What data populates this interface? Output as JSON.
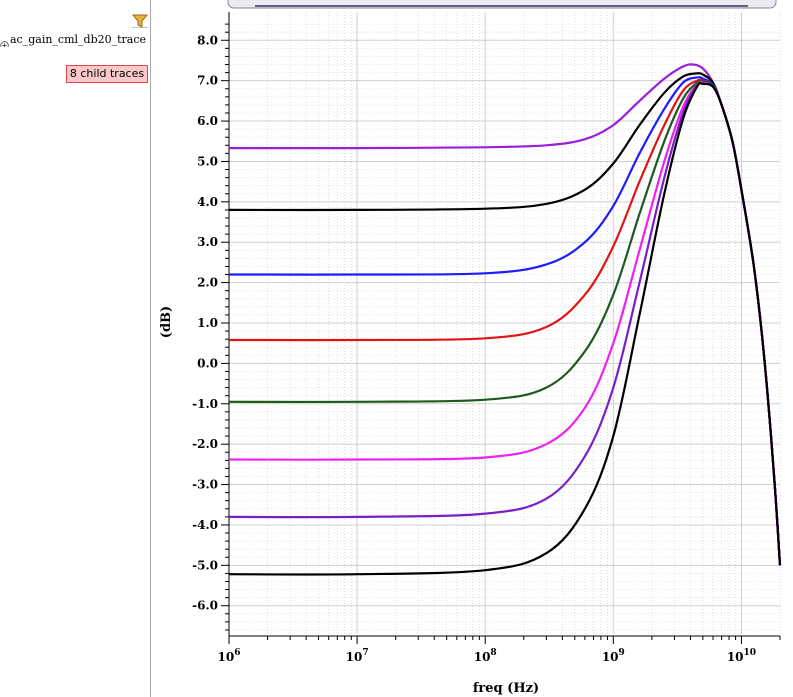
{
  "panel": {
    "trace_name": "ac_gain_cml_db20_trace",
    "child_badge": "8 child traces",
    "filter_icon": "filter-funnel-icon",
    "expand_icon": "plus-circle-icon"
  },
  "chart_data": {
    "type": "line",
    "xlabel": "freq (Hz)",
    "ylabel": "(dB)",
    "xscale": "log",
    "xlim": [
      1000000,
      20000000000
    ],
    "ylim": [
      -6.7,
      8.7
    ],
    "grid": true,
    "yticks": [
      {
        "value": 8,
        "label": "8.0"
      },
      {
        "value": 7,
        "label": "7.0"
      },
      {
        "value": 6,
        "label": "6.0"
      },
      {
        "value": 5,
        "label": "5.0"
      },
      {
        "value": 4,
        "label": "4.0"
      },
      {
        "value": 3,
        "label": "3.0"
      },
      {
        "value": 2,
        "label": "2.0"
      },
      {
        "value": 1,
        "label": "1.0"
      },
      {
        "value": 0,
        "label": "0.0"
      },
      {
        "value": -1,
        "label": "-1.0"
      },
      {
        "value": -2,
        "label": "-2.0"
      },
      {
        "value": -3,
        "label": "-3.0"
      },
      {
        "value": -4,
        "label": "-4.0"
      },
      {
        "value": -5,
        "label": "-5.0"
      },
      {
        "value": -6,
        "label": "-6.0"
      }
    ],
    "xticks": [
      {
        "value": 1000000,
        "base": "10",
        "exp": "6"
      },
      {
        "value": 10000000,
        "base": "10",
        "exp": "7"
      },
      {
        "value": 100000000,
        "base": "10",
        "exp": "8"
      },
      {
        "value": 1000000000,
        "base": "10",
        "exp": "9"
      },
      {
        "value": 10000000000,
        "base": "10",
        "exp": "10"
      }
    ],
    "series": [
      {
        "color": "#9a1fd8",
        "x": [
          1000000.0,
          10000000.0,
          100000000.0,
          300000000.0,
          600000000.0,
          1000000000.0,
          1600000000.0,
          2500000000.0,
          3500000000.0,
          4200000000.0,
          5000000000.0,
          6000000000.0,
          7000000000.0,
          8500000000.0,
          10000000000.0,
          12500000000.0,
          15000000000.0,
          18000000000.0,
          20000000000.0
        ],
        "y": [
          5.33,
          5.33,
          5.35,
          5.4,
          5.55,
          5.9,
          6.5,
          7.05,
          7.35,
          7.4,
          7.3,
          6.95,
          6.4,
          5.5,
          4.3,
          2.4,
          0.2,
          -2.8,
          -5.0
        ]
      },
      {
        "color": "#000000",
        "x": [
          1000000.0,
          10000000.0,
          100000000.0,
          300000000.0,
          600000000.0,
          1000000000.0,
          1600000000.0,
          2500000000.0,
          3500000000.0,
          4500000000.0,
          5000000000.0,
          6000000000.0,
          7000000000.0,
          8500000000.0,
          10000000000.0,
          12500000000.0,
          15000000000.0,
          18000000000.0,
          20000000000.0
        ],
        "y": [
          3.8,
          3.8,
          3.83,
          3.95,
          4.3,
          4.95,
          5.9,
          6.7,
          7.1,
          7.18,
          7.15,
          6.95,
          6.4,
          5.5,
          4.3,
          2.4,
          0.2,
          -2.8,
          -5.0
        ]
      },
      {
        "color": "#1c1cff",
        "x": [
          1000000.0,
          10000000.0,
          100000000.0,
          300000000.0,
          600000000.0,
          1000000000.0,
          1600000000.0,
          2500000000.0,
          3500000000.0,
          4500000000.0,
          5000000000.0,
          6000000000.0,
          7000000000.0,
          8500000000.0,
          10000000000.0,
          12500000000.0,
          15000000000.0,
          18000000000.0,
          20000000000.0
        ],
        "y": [
          2.2,
          2.2,
          2.23,
          2.45,
          3.0,
          3.9,
          5.2,
          6.3,
          6.95,
          7.08,
          7.05,
          6.9,
          6.4,
          5.5,
          4.3,
          2.4,
          0.2,
          -2.8,
          -5.0
        ]
      },
      {
        "color": "#e01414",
        "x": [
          1000000.0,
          10000000.0,
          100000000.0,
          300000000.0,
          600000000.0,
          1000000000.0,
          1600000000.0,
          2500000000.0,
          3500000000.0,
          4500000000.0,
          5000000000.0,
          6000000000.0,
          7000000000.0,
          8500000000.0,
          10000000000.0,
          12500000000.0,
          15000000000.0,
          18000000000.0,
          20000000000.0
        ],
        "y": [
          0.58,
          0.58,
          0.62,
          0.9,
          1.7,
          2.9,
          4.5,
          5.9,
          6.75,
          7.0,
          7.0,
          6.88,
          6.4,
          5.5,
          4.3,
          2.4,
          0.2,
          -2.8,
          -5.0
        ]
      },
      {
        "color": "#1e5a1e",
        "x": [
          1000000.0,
          10000000.0,
          100000000.0,
          300000000.0,
          600000000.0,
          1000000000.0,
          1600000000.0,
          2500000000.0,
          3500000000.0,
          4500000000.0,
          5000000000.0,
          6000000000.0,
          7000000000.0,
          8500000000.0,
          10000000000.0,
          12500000000.0,
          15000000000.0,
          18000000000.0,
          20000000000.0
        ],
        "y": [
          -0.95,
          -0.95,
          -0.9,
          -0.6,
          0.3,
          1.7,
          3.7,
          5.5,
          6.55,
          6.95,
          6.98,
          6.88,
          6.4,
          5.5,
          4.3,
          2.4,
          0.2,
          -2.8,
          -5.0
        ]
      },
      {
        "color": "#ee22ee",
        "x": [
          1000000.0,
          10000000.0,
          100000000.0,
          300000000.0,
          600000000.0,
          1000000000.0,
          1600000000.0,
          2500000000.0,
          3500000000.0,
          4500000000.0,
          5000000000.0,
          6000000000.0,
          7000000000.0,
          8500000000.0,
          10000000000.0,
          12500000000.0,
          15000000000.0,
          18000000000.0,
          20000000000.0
        ],
        "y": [
          -2.38,
          -2.38,
          -2.33,
          -2.0,
          -1.1,
          0.5,
          2.8,
          5.0,
          6.35,
          6.9,
          6.95,
          6.85,
          6.4,
          5.5,
          4.3,
          2.4,
          0.2,
          -2.8,
          -5.0
        ]
      },
      {
        "color": "#7a1fc8",
        "x": [
          1000000.0,
          10000000.0,
          100000000.0,
          300000000.0,
          600000000.0,
          1000000000.0,
          1600000000.0,
          2500000000.0,
          3500000000.0,
          4500000000.0,
          5000000000.0,
          6000000000.0,
          7000000000.0,
          8500000000.0,
          10000000000.0,
          12500000000.0,
          15000000000.0,
          18000000000.0,
          20000000000.0
        ],
        "y": [
          -3.8,
          -3.8,
          -3.72,
          -3.35,
          -2.3,
          -0.6,
          2.0,
          4.6,
          6.2,
          6.88,
          6.92,
          6.85,
          6.4,
          5.5,
          4.3,
          2.4,
          0.2,
          -2.8,
          -5.0
        ]
      },
      {
        "color": "#000000",
        "x": [
          1000000.0,
          10000000.0,
          100000000.0,
          300000000.0,
          600000000.0,
          1000000000.0,
          1600000000.0,
          2500000000.0,
          3500000000.0,
          4500000000.0,
          5000000000.0,
          6000000000.0,
          7000000000.0,
          8500000000.0,
          10000000000.0,
          12500000000.0,
          15000000000.0,
          18000000000.0,
          20000000000.0
        ],
        "y": [
          -5.22,
          -5.22,
          -5.12,
          -4.7,
          -3.6,
          -1.8,
          1.2,
          4.2,
          6.05,
          6.85,
          6.92,
          6.85,
          6.4,
          5.5,
          4.3,
          2.4,
          0.2,
          -2.8,
          -5.0
        ]
      }
    ]
  }
}
